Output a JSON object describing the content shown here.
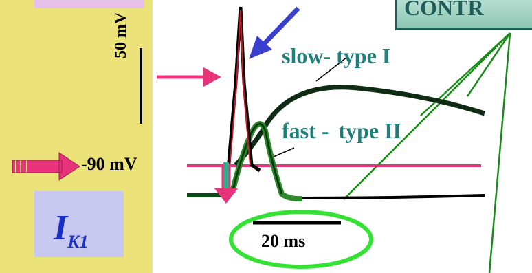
{
  "labels": {
    "scale_voltage": "50 mV",
    "resting_potential": "-90 mV",
    "current_main": "I",
    "current_sub": "K1",
    "slow_fiber": "slow- type I",
    "fast_fiber_prefix": "fast -",
    "fast_fiber_suffix": "type II",
    "time_scale": "20 ms",
    "control_box": "CONTR"
  },
  "colors": {
    "left_panel": "#ece27a",
    "ik1_box": "#c6c8f0",
    "pink_arrow": "#e8327a",
    "blue_arrow": "#3b3fd0",
    "fiber_label": "#1f7f7a",
    "ellipse": "#33e233",
    "control_fill": "#9fd4c2",
    "callout_lines": "#1a8a1a"
  },
  "icons": {
    "pink_arrow": "right-arrow",
    "blue_arrow": "down-left-arrow",
    "hyperpolarization_arrow": "down-arrow"
  }
}
